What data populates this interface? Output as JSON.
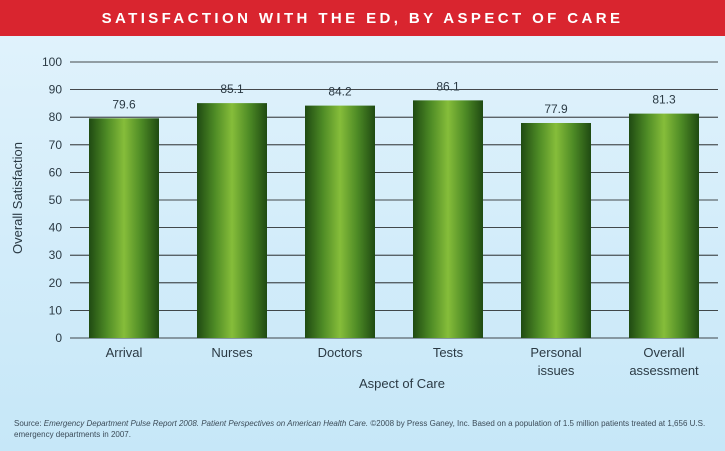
{
  "header": {
    "title": "SATISFACTION WITH THE ED, BY ASPECT OF CARE"
  },
  "colors": {
    "title_bar": "#d9252f",
    "bar_dark": "#1f4a12",
    "bar_light": "#86bd3a",
    "grid": "#111111",
    "background": "#cfeaf9"
  },
  "chart_data": {
    "type": "bar",
    "title": "SATISFACTION WITH THE ED, BY ASPECT OF CARE",
    "xlabel": "Aspect of Care",
    "ylabel": "Overall Satisfaction",
    "categories": [
      "Arrival",
      "Nurses",
      "Doctors",
      "Tests",
      "Personal issues",
      "Overall assessment"
    ],
    "category_lines": [
      [
        "Arrival"
      ],
      [
        "Nurses"
      ],
      [
        "Doctors"
      ],
      [
        "Tests"
      ],
      [
        "Personal",
        "issues"
      ],
      [
        "Overall",
        "assessment"
      ]
    ],
    "values": [
      79.6,
      85.1,
      84.2,
      86.1,
      77.9,
      81.3
    ],
    "data_labels": [
      "79.6",
      "85.1",
      "84.2",
      "86.1",
      "77.9",
      "81.3"
    ],
    "ylim": [
      0,
      100
    ],
    "yticks": [
      0,
      10,
      20,
      30,
      40,
      50,
      60,
      70,
      80,
      90,
      100
    ],
    "grid": true
  },
  "source": {
    "prefix": "Source: ",
    "italic": "Emergency Department Pulse Report 2008. Patient Perspectives on American Health Care.",
    "rest": " ©2008 by Press Ganey, Inc. Based on a population of 1.5 million patients treated at 1,656 U.S. emergency departments in 2007."
  }
}
